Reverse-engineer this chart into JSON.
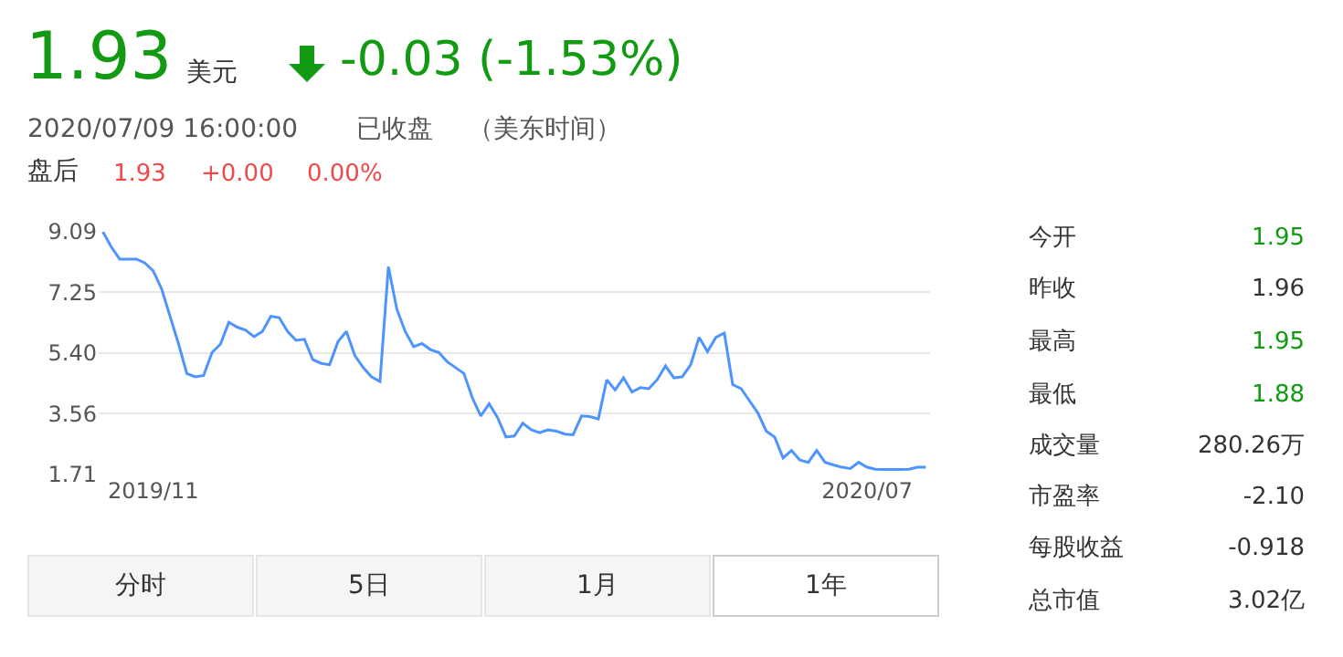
{
  "chart_data": {
    "type": "line",
    "categories": [
      null,
      null,
      null,
      null,
      null,
      null,
      "2019/11",
      null,
      null,
      null,
      null,
      null,
      null,
      null,
      null,
      null,
      null,
      null,
      null,
      null,
      null,
      null,
      null,
      null,
      null,
      null,
      null,
      null,
      null,
      null,
      null,
      null,
      null,
      null,
      null,
      null,
      null,
      null,
      null,
      null,
      null,
      null,
      null,
      null,
      null,
      null,
      null,
      null,
      null,
      null,
      null,
      null,
      null,
      null,
      null,
      null,
      null,
      null,
      null,
      null,
      null,
      null,
      null,
      null,
      null,
      null,
      null,
      null,
      null,
      null,
      null,
      null,
      null,
      null,
      null,
      null,
      null,
      null,
      null,
      null,
      null,
      null,
      null,
      null,
      null,
      null,
      null,
      null,
      null,
      null,
      null,
      "2020/07",
      null,
      null,
      null,
      null,
      null,
      null,
      null
    ],
    "series": [
      {
        "color": "#4d94ff",
        "values": [
          9.09,
          8.63,
          8.26,
          8.26,
          8.26,
          8.14,
          7.9,
          7.35,
          6.52,
          5.69,
          4.78,
          4.68,
          4.72,
          5.42,
          5.67,
          6.34,
          6.19,
          6.1,
          5.9,
          6.06,
          6.52,
          6.48,
          6.06,
          5.79,
          5.82,
          5.2,
          5.09,
          5.05,
          5.75,
          6.06,
          5.33,
          4.96,
          4.68,
          4.54,
          8.03,
          6.74,
          6.06,
          5.6,
          5.69,
          5.51,
          5.42,
          5.14,
          4.96,
          4.78,
          4.04,
          3.49,
          3.86,
          3.44,
          2.85,
          2.88,
          3.27,
          3.07,
          2.98,
          3.07,
          3.03,
          2.94,
          2.92,
          3.49,
          3.47,
          3.4,
          4.59,
          4.28,
          4.65,
          4.22,
          4.35,
          4.32,
          4.59,
          5.01,
          4.65,
          4.68,
          5.05,
          5.88,
          5.45,
          5.88,
          6.01,
          4.44,
          4.32,
          3.95,
          3.58,
          3.03,
          2.85,
          2.21,
          2.44,
          2.15,
          2.08,
          2.44,
          2.08,
          2,
          1.93,
          1.89,
          2.08,
          1.93,
          1.87,
          1.86,
          1.86,
          1.86,
          1.87,
          1.93,
          1.93
        ]
      }
    ],
    "ylim": [
      1.71,
      9.09
    ],
    "yticks": [
      1.71,
      3.56,
      {
        "value": 5.4,
        "label": "5.40"
      },
      7.25,
      9.09
    ],
    "grid": "y",
    "annotations": [
      "1.93",
      "美元",
      "-0.03 (-1.53%)",
      "2020/07/09 16:00:00",
      "已收盘",
      "（美东时间）",
      "盘后",
      "1.93",
      "+0.00",
      "0.00%",
      "今开",
      "1.95",
      "昨收",
      "1.96",
      "最高",
      "1.95",
      "最低",
      "1.88",
      "成交量",
      "280.26万",
      "市盈率",
      "-2.10",
      "每股收益",
      "-0.918",
      "总市值",
      "3.02亿",
      "分时",
      "5日",
      "1月",
      "1年"
    ]
  }
}
